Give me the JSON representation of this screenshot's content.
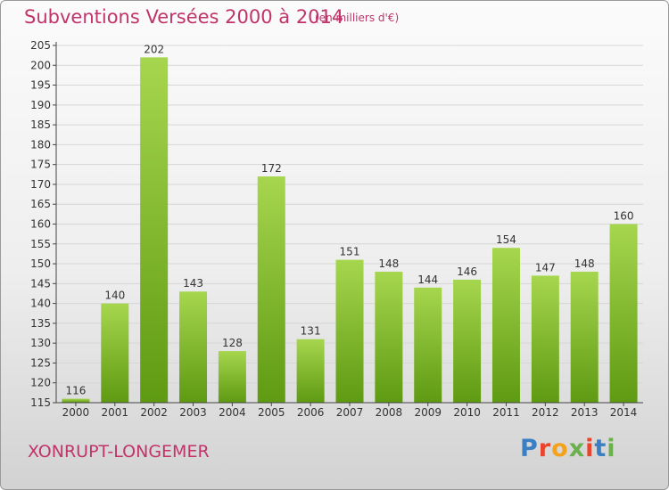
{
  "header": {
    "title": "Subventions Versées 2000 à 2014",
    "subtitle": "(en milliers d'€)"
  },
  "footer": {
    "commune": "XONRUPT-LONGEMER",
    "logo_text": "Proxiti",
    "logo_colors": [
      "#3a7fc4",
      "#e8452c",
      "#f4a21c",
      "#6ab04c",
      "#e8452c",
      "#3a7fc4",
      "#6ab04c"
    ]
  },
  "colors": {
    "bar_light": "#a6d64e",
    "bar_dark": "#5e9a12",
    "axis": "#444444",
    "grid": "#d6d6d6"
  },
  "chart_data": {
    "type": "bar",
    "categories": [
      "2000",
      "2001",
      "2002",
      "2003",
      "2004",
      "2005",
      "2006",
      "2007",
      "2008",
      "2009",
      "2010",
      "2011",
      "2012",
      "2013",
      "2014"
    ],
    "values": [
      116,
      140,
      202,
      143,
      128,
      172,
      131,
      151,
      148,
      144,
      146,
      154,
      147,
      148,
      160
    ],
    "ylim": [
      115,
      205
    ],
    "yticks": [
      115,
      120,
      125,
      130,
      135,
      140,
      145,
      150,
      155,
      160,
      165,
      170,
      175,
      180,
      185,
      190,
      195,
      200,
      205
    ],
    "grid": true,
    "legend": "none"
  }
}
